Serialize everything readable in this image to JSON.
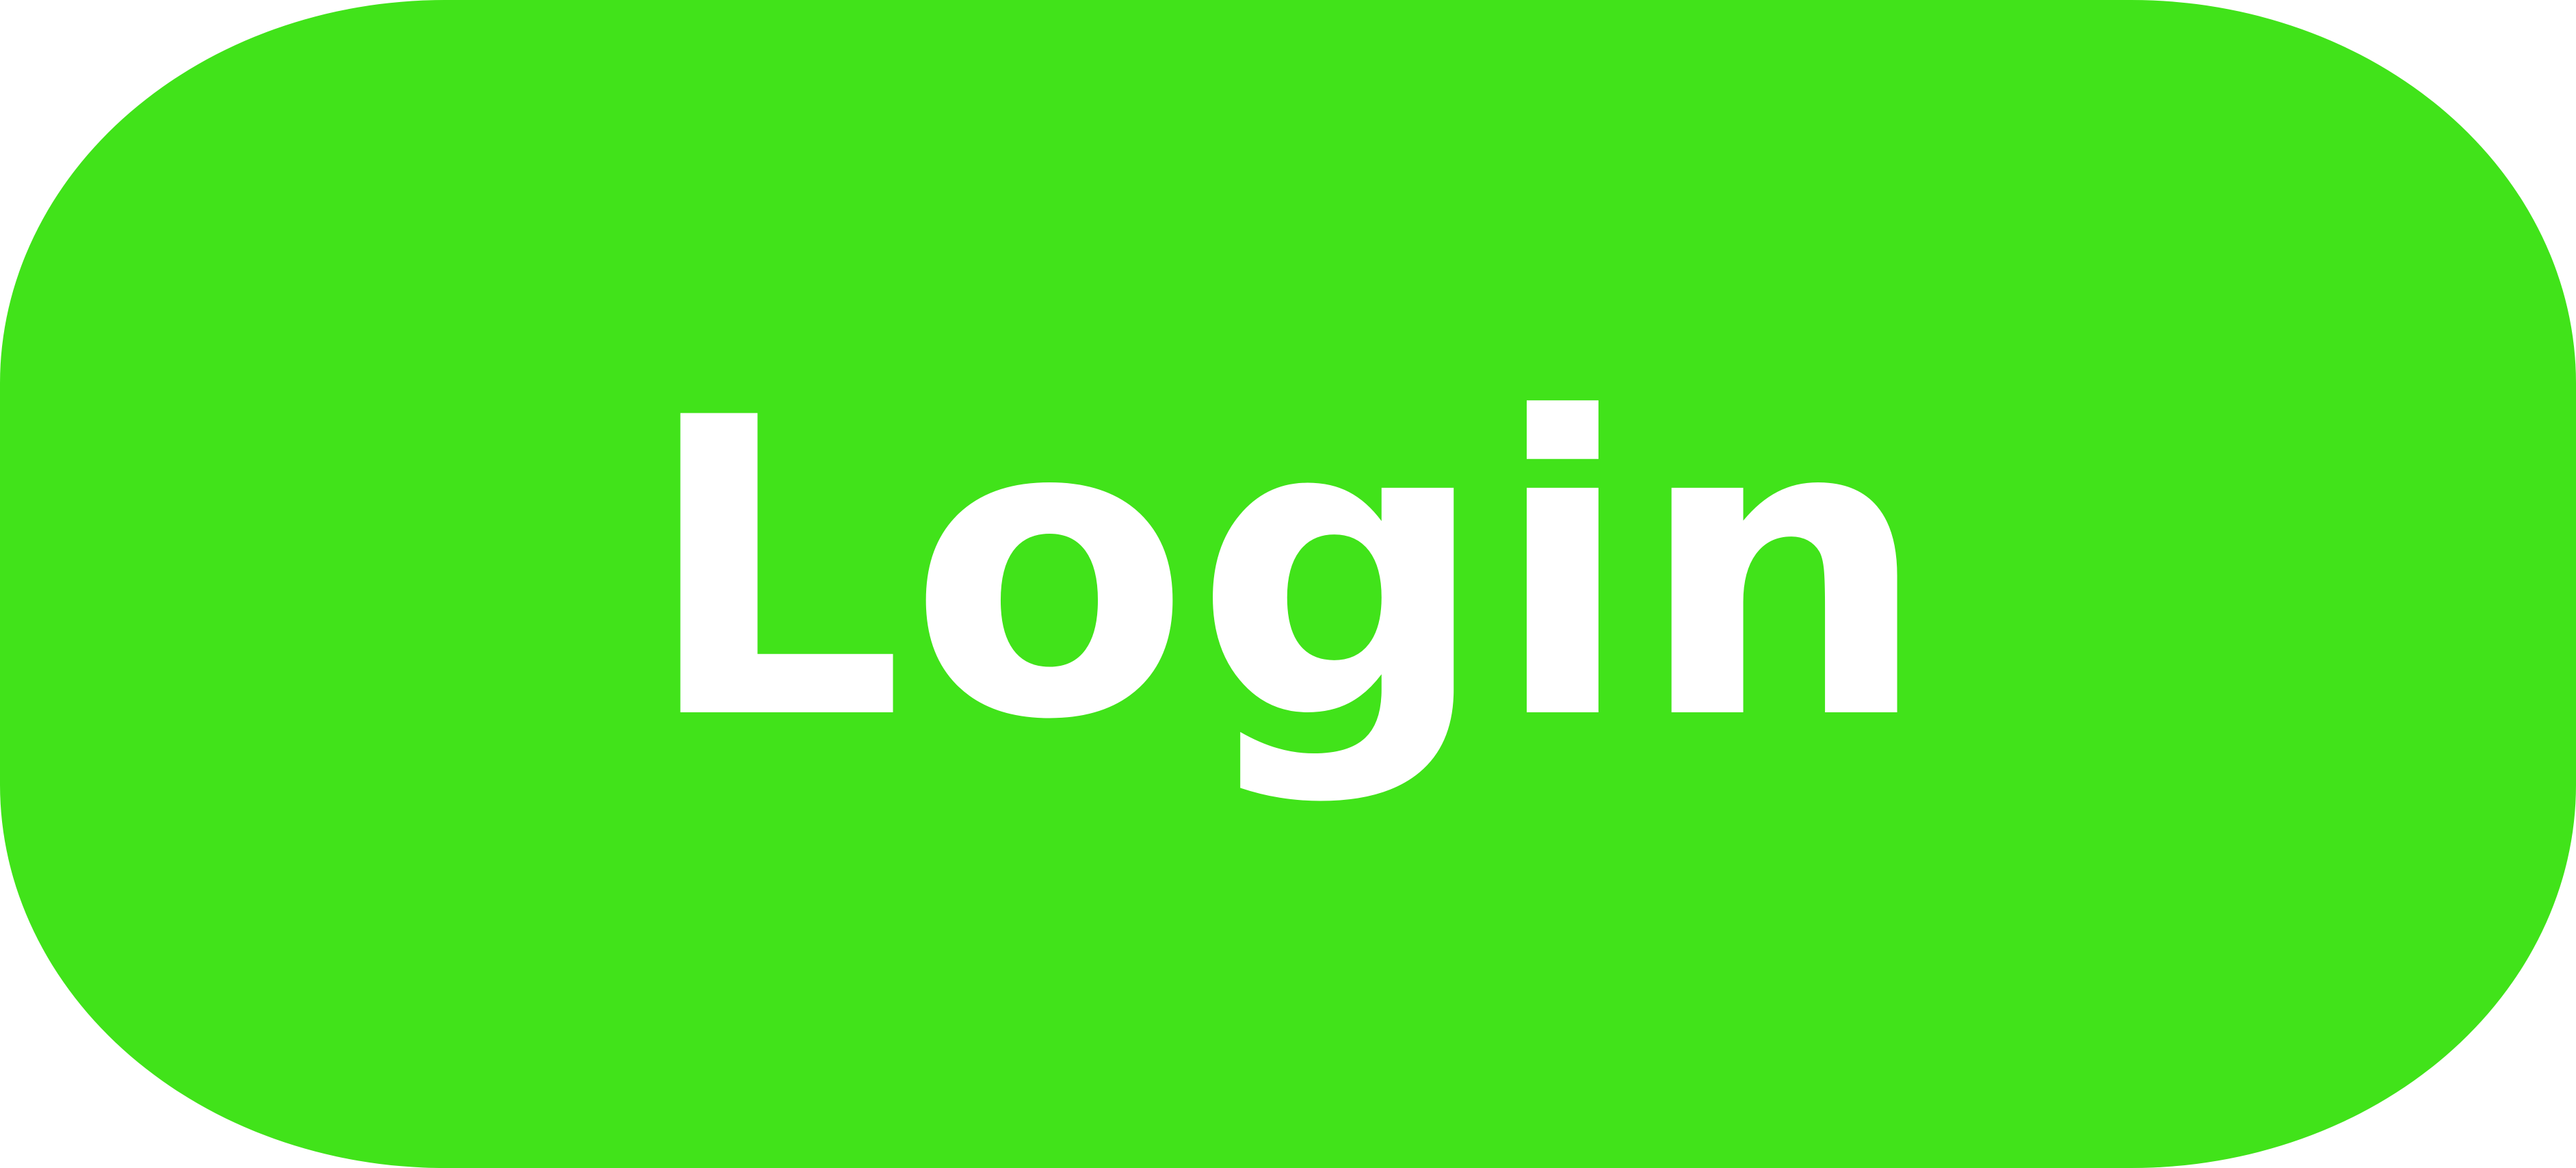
{
  "login_button": {
    "label": "Login",
    "background_color": "#41e31a",
    "text_color": "#ffffff"
  }
}
